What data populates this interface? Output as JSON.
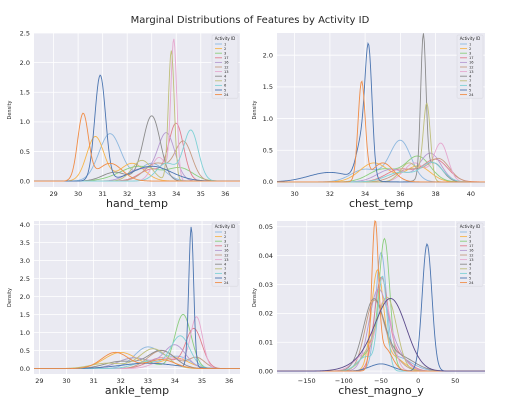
{
  "figure": {
    "title": "Marginal Distributions of Features by Activity ID"
  },
  "chart_data": [
    {
      "type": "line",
      "panel": "top-left",
      "xlabel": "hand_temp",
      "ylabel": "Density",
      "xlim": [
        28.2,
        36.6
      ],
      "ylim": [
        -0.1,
        2.5
      ],
      "xticks": [
        "29",
        "30",
        "31",
        "32",
        "33",
        "34",
        "35",
        "36"
      ],
      "yticks": [
        "0.0",
        "0.5",
        "1.0",
        "1.5",
        "2.0",
        "2.5"
      ],
      "grid": true,
      "legend": {
        "title": "Activity ID",
        "placement": "top-right",
        "labels": [
          "1",
          "2",
          "3",
          "17",
          "16",
          "12",
          "13",
          "4",
          "7",
          "6",
          "5",
          "24"
        ]
      },
      "series": [
        {
          "name": "1",
          "color": "#8eb8df",
          "peaks": [
            [
              31.3,
              0.8,
              0.45
            ],
            [
              33.0,
              0.3,
              0.5
            ]
          ]
        },
        {
          "name": "2",
          "color": "#f6b54d",
          "peaks": [
            [
              30.7,
              0.75,
              0.35
            ],
            [
              32.2,
              0.3,
              0.5
            ]
          ]
        },
        {
          "name": "3",
          "color": "#8ccf7e",
          "peaks": [
            [
              32.5,
              0.25,
              0.8
            ],
            [
              34.2,
              0.2,
              0.5
            ]
          ]
        },
        {
          "name": "17",
          "color": "#e07f8e",
          "peaks": [
            [
              34.0,
              0.95,
              0.3
            ],
            [
              33.0,
              0.2,
              0.5
            ]
          ]
        },
        {
          "name": "16",
          "color": "#b79bd1",
          "peaks": [
            [
              33.6,
              0.8,
              0.35
            ],
            [
              32.5,
              0.2,
              0.5
            ]
          ]
        },
        {
          "name": "12",
          "color": "#c69c83",
          "peaks": [
            [
              34.3,
              0.65,
              0.35
            ],
            [
              33.2,
              0.3,
              0.5
            ]
          ]
        },
        {
          "name": "13",
          "color": "#e6a8cf",
          "peaks": [
            [
              33.9,
              2.35,
              0.12
            ],
            [
              33.3,
              0.4,
              0.3
            ]
          ]
        },
        {
          "name": "4",
          "color": "#8c8c8c",
          "peaks": [
            [
              33.0,
              1.1,
              0.35
            ],
            [
              31.5,
              0.15,
              0.5
            ]
          ]
        },
        {
          "name": "7",
          "color": "#bfbf7a",
          "peaks": [
            [
              33.8,
              2.2,
              0.12
            ],
            [
              32.6,
              0.35,
              0.4
            ]
          ]
        },
        {
          "name": "6",
          "color": "#7fd1d6",
          "peaks": [
            [
              34.6,
              0.85,
              0.3
            ],
            [
              33.6,
              0.3,
              0.4
            ]
          ]
        },
        {
          "name": "5",
          "color": "#4a74b0",
          "peaks": [
            [
              30.9,
              1.78,
              0.22
            ],
            [
              33.0,
              0.25,
              0.8
            ]
          ]
        },
        {
          "name": "24",
          "color": "#f08c46",
          "peaks": [
            [
              30.2,
              1.12,
              0.22
            ],
            [
              31.3,
              0.3,
              0.5
            ]
          ]
        }
      ]
    },
    {
      "type": "line",
      "panel": "top-right",
      "xlabel": "chest_temp",
      "ylabel": "Density",
      "xlim": [
        29.0,
        40.8
      ],
      "ylim": [
        -0.08,
        2.35
      ],
      "xticks": [
        "30",
        "32",
        "34",
        "36",
        "38",
        "40"
      ],
      "yticks": [
        "0.0",
        "0.5",
        "1.0",
        "1.5",
        "2.0"
      ],
      "grid": true,
      "legend": {
        "title": "Activity ID",
        "placement": "top-right",
        "labels": [
          "1",
          "2",
          "3",
          "17",
          "16",
          "12",
          "13",
          "4",
          "7",
          "6",
          "5",
          "24"
        ]
      },
      "series": [
        {
          "name": "1",
          "color": "#8eb8df",
          "peaks": [
            [
              36.0,
              0.65,
              0.6
            ],
            [
              34.0,
              0.2,
              0.8
            ]
          ]
        },
        {
          "name": "2",
          "color": "#f6b54d",
          "peaks": [
            [
              34.5,
              0.3,
              0.8
            ],
            [
              37.0,
              0.25,
              0.7
            ]
          ]
        },
        {
          "name": "3",
          "color": "#8ccf7e",
          "peaks": [
            [
              37.0,
              0.4,
              0.7
            ],
            [
              35.0,
              0.2,
              0.8
            ]
          ]
        },
        {
          "name": "17",
          "color": "#e07f8e",
          "peaks": [
            [
              38.0,
              0.35,
              0.7
            ],
            [
              36.0,
              0.2,
              0.8
            ]
          ]
        },
        {
          "name": "16",
          "color": "#b79bd1",
          "peaks": [
            [
              37.7,
              0.45,
              0.6
            ],
            [
              35.5,
              0.2,
              0.8
            ]
          ]
        },
        {
          "name": "12",
          "color": "#c69c83",
          "peaks": [
            [
              38.2,
              0.35,
              0.6
            ],
            [
              36.5,
              0.2,
              0.8
            ]
          ]
        },
        {
          "name": "13",
          "color": "#e6a8cf",
          "peaks": [
            [
              38.3,
              0.6,
              0.4
            ],
            [
              36.8,
              0.3,
              0.6
            ]
          ]
        },
        {
          "name": "4",
          "color": "#8c8c8c",
          "peaks": [
            [
              37.3,
              2.2,
              0.15
            ],
            [
              37.9,
              0.3,
              0.5
            ]
          ]
        },
        {
          "name": "7",
          "color": "#bfbf7a",
          "peaks": [
            [
              37.5,
              1.2,
              0.2
            ],
            [
              36.5,
              0.3,
              0.5
            ]
          ]
        },
        {
          "name": "6",
          "color": "#7fd1d6",
          "peaks": [
            [
              37.8,
              0.3,
              0.6
            ],
            [
              36.0,
              0.15,
              0.8
            ]
          ]
        },
        {
          "name": "5",
          "color": "#4a74b0",
          "peaks": [
            [
              34.2,
              1.9,
              0.2
            ],
            [
              33.8,
              0.6,
              0.3
            ],
            [
              32.0,
              0.15,
              1.2
            ]
          ]
        },
        {
          "name": "24",
          "color": "#f08c46",
          "peaks": [
            [
              33.8,
              1.55,
              0.2
            ],
            [
              35.0,
              0.3,
              0.6
            ]
          ]
        }
      ]
    },
    {
      "type": "line",
      "panel": "bottom-left",
      "xlabel": "ankle_temp",
      "ylabel": "Density",
      "xlim": [
        28.8,
        36.4
      ],
      "ylim": [
        -0.15,
        4.1
      ],
      "xticks": [
        "29",
        "30",
        "31",
        "32",
        "33",
        "34",
        "35",
        "36"
      ],
      "yticks": [
        "0.0",
        "0.5",
        "1.0",
        "1.5",
        "2.0",
        "2.5",
        "3.0",
        "3.5",
        "4.0"
      ],
      "grid": true,
      "legend": {
        "title": "Activity ID",
        "placement": "top-right",
        "labels": [
          "1",
          "2",
          "3",
          "17",
          "16",
          "12",
          "13",
          "4",
          "7",
          "6",
          "5",
          "24"
        ]
      },
      "series": [
        {
          "name": "1",
          "color": "#8eb8df",
          "peaks": [
            [
              33.0,
              0.6,
              0.5
            ],
            [
              34.2,
              0.3,
              0.4
            ]
          ]
        },
        {
          "name": "2",
          "color": "#f6b54d",
          "peaks": [
            [
              32.0,
              0.45,
              0.6
            ],
            [
              34.0,
              0.3,
              0.5
            ]
          ]
        },
        {
          "name": "3",
          "color": "#8ccf7e",
          "peaks": [
            [
              34.3,
              1.5,
              0.3
            ],
            [
              32.5,
              0.3,
              0.6
            ]
          ]
        },
        {
          "name": "17",
          "color": "#e07f8e",
          "peaks": [
            [
              34.7,
              1.1,
              0.3
            ],
            [
              33.5,
              0.3,
              0.5
            ]
          ]
        },
        {
          "name": "16",
          "color": "#b79bd1",
          "peaks": [
            [
              34.0,
              0.65,
              0.4
            ],
            [
              32.5,
              0.3,
              0.6
            ]
          ]
        },
        {
          "name": "12",
          "color": "#c69c83",
          "peaks": [
            [
              33.5,
              0.5,
              0.5
            ],
            [
              34.8,
              0.3,
              0.3
            ]
          ]
        },
        {
          "name": "13",
          "color": "#e6a8cf",
          "peaks": [
            [
              34.8,
              1.4,
              0.22
            ],
            [
              33.8,
              0.3,
              0.5
            ]
          ]
        },
        {
          "name": "4",
          "color": "#8c8c8c",
          "peaks": [
            [
              33.5,
              0.5,
              0.5
            ],
            [
              32.0,
              0.2,
              0.6
            ]
          ]
        },
        {
          "name": "7",
          "color": "#bfbf7a",
          "peaks": [
            [
              33.2,
              0.55,
              0.5
            ],
            [
              31.5,
              0.15,
              0.6
            ]
          ]
        },
        {
          "name": "6",
          "color": "#7fd1d6",
          "peaks": [
            [
              34.2,
              0.9,
              0.35
            ],
            [
              33.0,
              0.2,
              0.5
            ]
          ]
        },
        {
          "name": "5",
          "color": "#4a74b0",
          "peaks": [
            [
              34.6,
              3.9,
              0.09
            ],
            [
              33.0,
              0.15,
              1.0
            ]
          ]
        },
        {
          "name": "24",
          "color": "#f08c46",
          "peaks": [
            [
              31.8,
              0.45,
              0.5
            ],
            [
              33.5,
              0.25,
              0.5
            ]
          ]
        }
      ]
    },
    {
      "type": "line",
      "panel": "bottom-right",
      "xlabel": "chest_magno_y",
      "ylabel": "Density",
      "xlim": [
        -190,
        90
      ],
      "ylim": [
        -0.001,
        0.052
      ],
      "xticks": [
        "−150",
        "−100",
        "−50",
        "0",
        "50"
      ],
      "xtick_values": [
        -150,
        -100,
        -50,
        0,
        50
      ],
      "yticks": [
        "0.00",
        "0.01",
        "0.02",
        "0.03",
        "0.04",
        "0.05"
      ],
      "grid": true,
      "legend": {
        "title": "Activity ID",
        "placement": "top-right",
        "labels": [
          "1",
          "2",
          "3",
          "17",
          "16",
          "12",
          "13",
          "4",
          "7",
          "6",
          "5",
          "24"
        ]
      },
      "series": [
        {
          "name": "1",
          "color": "#8eb8df",
          "peaks": [
            [
              -50,
              0.038,
              7
            ],
            [
              -30,
              0.005,
              20
            ]
          ]
        },
        {
          "name": "2",
          "color": "#f6b54d",
          "peaks": [
            [
              -55,
              0.033,
              8
            ],
            [
              -35,
              0.005,
              15
            ]
          ]
        },
        {
          "name": "3",
          "color": "#8ccf7e",
          "peaks": [
            [
              -45,
              0.041,
              7
            ],
            [
              -60,
              0.008,
              15
            ]
          ]
        },
        {
          "name": "17",
          "color": "#e07f8e",
          "peaks": [
            [
              -50,
              0.03,
              9
            ],
            [
              -30,
              0.006,
              15
            ]
          ]
        },
        {
          "name": "16",
          "color": "#b79bd1",
          "peaks": [
            [
              -55,
              0.025,
              12
            ],
            [
              -35,
              0.008,
              15
            ]
          ]
        },
        {
          "name": "12",
          "color": "#c69c83",
          "peaks": [
            [
              -60,
              0.022,
              12
            ],
            [
              -40,
              0.006,
              15
            ]
          ]
        },
        {
          "name": "13",
          "color": "#e6a8cf",
          "peaks": [
            [
              -45,
              0.023,
              10
            ],
            [
              -70,
              0.006,
              15
            ]
          ]
        },
        {
          "name": "4",
          "color": "#8c8c8c",
          "peaks": [
            [
              -60,
              0.024,
              14
            ],
            [
              -25,
              0.005,
              20
            ]
          ]
        },
        {
          "name": "7",
          "color": "#bfbf7a",
          "peaks": [
            [
              -40,
              0.022,
              12
            ],
            [
              -60,
              0.008,
              15
            ]
          ]
        },
        {
          "name": "6",
          "color": "#7fd1d6",
          "peaks": [
            [
              -48,
              0.032,
              6
            ],
            [
              -70,
              0.005,
              12
            ]
          ]
        },
        {
          "name": "5",
          "color": "#4a74b0",
          "peaks": [
            [
              12,
              0.044,
              6.5
            ],
            [
              -50,
              0.0025,
              15
            ]
          ]
        },
        {
          "name": "24",
          "color": "#f08c46",
          "peaks": [
            [
              -58,
              0.049,
              4.5
            ],
            [
              -45,
              0.008,
              10
            ]
          ]
        },
        {
          "name": "",
          "color": "#5a4a8a",
          "peaks": [
            [
              -35,
              0.022,
              20
            ],
            [
              -60,
              0.005,
              25
            ]
          ]
        }
      ]
    }
  ]
}
